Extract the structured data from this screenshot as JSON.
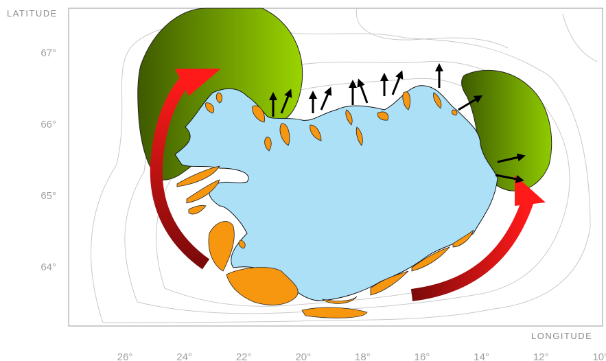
{
  "axes": {
    "y_title": "LATITUDE",
    "x_title": "LONGITUDE",
    "y_ticks": [
      "67°",
      "66°",
      "65°",
      "64°"
    ],
    "x_ticks": [
      "26°",
      "24°",
      "22°",
      "20°",
      "18°",
      "16°",
      "14°",
      "12°",
      "10°"
    ]
  }
}
